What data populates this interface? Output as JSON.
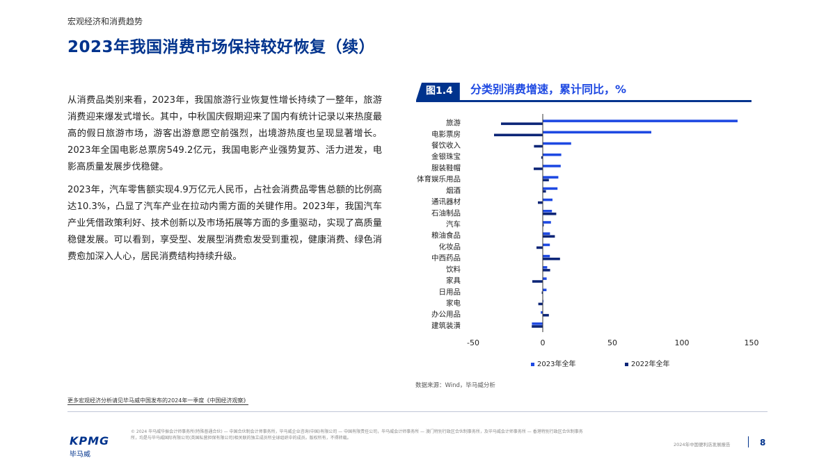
{
  "header": {
    "section": "宏观经济和消费趋势",
    "title": "2023年我国消费市场保持较好恢复（续）"
  },
  "body": {
    "paragraphs": [
      "从消费品类别来看，2023年，我国旅游行业恢复性增长持续了一整年，旅游消费迎来爆发式增长。其中，中秋国庆假期迎来了国内有统计记录以来热度最高的假日旅游市场，游客出游意愿空前强烈，出境游热度也呈现显著增长。2023年全国电影总票房549.2亿元，我国电影产业强势复苏、活力迸发，电影高质量发展步伐稳健。",
      "2023年，汽车零售额实现4.9万亿元人民币，占社会消费品零售总额的比例高达10.3%，凸显了汽车产业在拉动内需方面的关键作用。2023年，我国汽车产业凭借政策利好、技术创新以及市场拓展等方面的多重驱动，实现了高质量稳健发展。可以看到，享受型、发展型消费愈发受到重视，健康消费、绿色消费愈加深入人心，居民消费结构持续升级。"
    ]
  },
  "figure": {
    "badge": "图1.4",
    "title": "分类别消费增速，累计同比，%",
    "source": "数据来源：Wind，毕马威分析"
  },
  "chart_data": {
    "type": "bar",
    "orientation": "horizontal",
    "categories": [
      "旅游",
      "电影票房",
      "餐饮收入",
      "金银珠宝",
      "服装鞋帽",
      "体育娱乐用品",
      "烟酒",
      "通讯器材",
      "石油制品",
      "汽车",
      "粮油食品",
      "化妆品",
      "中西药品",
      "饮料",
      "家具",
      "日用品",
      "家电",
      "办公用品",
      "建筑装潢"
    ],
    "series": [
      {
        "name": "2023年全年",
        "color": "#1e49e2",
        "values": [
          140,
          78,
          20.4,
          13.3,
          12.9,
          11.2,
          10.6,
          7.0,
          6.6,
          5.9,
          5.2,
          5.1,
          5.1,
          3.2,
          2.8,
          2.7,
          0.5,
          -1.4,
          -7.8
        ]
      },
      {
        "name": "2022年全年",
        "color": "#0c2577",
        "values": [
          -30,
          -35,
          -6.3,
          -1.1,
          -6.5,
          4.4,
          2.3,
          -3.5,
          9.7,
          0.7,
          8.7,
          -4.5,
          12.4,
          5.3,
          -7.5,
          -0.7,
          -3.2,
          4.4,
          -7.9
        ]
      }
    ],
    "xlim": [
      -50,
      150
    ],
    "xticks": [
      -50,
      0,
      50,
      100,
      150
    ],
    "legend_position": "bottom"
  },
  "notes": {
    "more": "更多宏观经济分析请见毕马威中国发布的2024年一季度《中国经济观察》"
  },
  "footer": {
    "logo_text": "KPMG",
    "logo_cn": "毕马威",
    "disclaimer": "© 2024 毕马威华振会计师事务所(特殊普通合伙) — 中国合伙制会计师事务所，毕马威企业咨询(中国)有限公司 — 中国有限责任公司，毕马威会计师事务所 — 澳门特别行政区合伙制事务所，及毕马威会计师事务所 — 香港特别行政区合伙制事务所，均是与毕马威国际有限公司(英国私营担保有限公司)相关联的独立成员所全球组织中的成员。版权所有，不得转载。",
    "report_name": "2024年中国便利店发展报告",
    "page": "8"
  },
  "colors": {
    "brand": "#00338d",
    "accent": "#1e49e2",
    "dark_series": "#0c2577"
  }
}
